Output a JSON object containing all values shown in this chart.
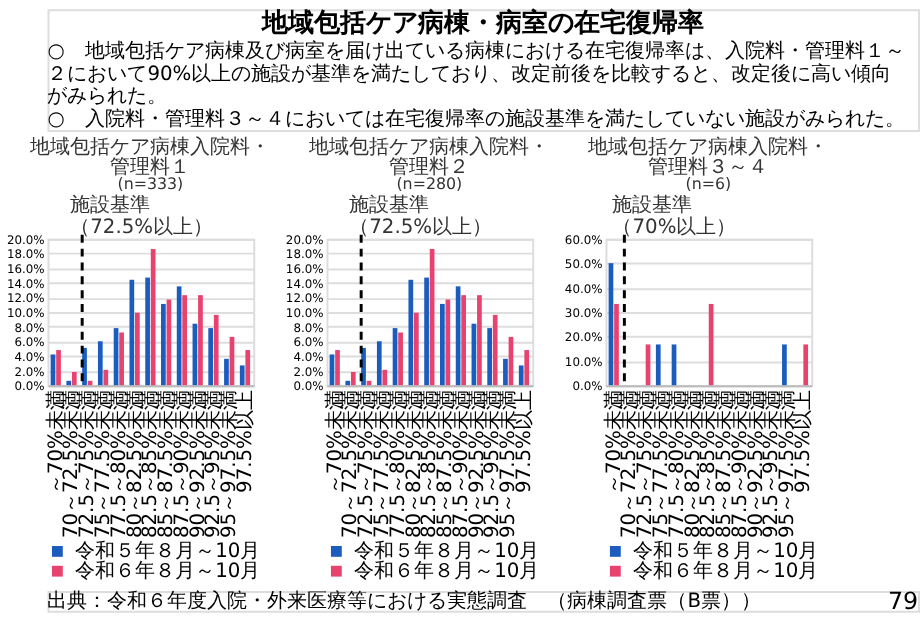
{
  "chart_data": [
    {
      "type": "other",
      "title": "地域包括ケア病棟・病室の在宅復帰率",
      "annotations": [
        "○　地域包括ケア病棟及び病室を届け出ている病棟における在宅復帰率は、入院料・管理料１～２において90%以上の施設が基準を満たしており、改定前後を比較すると、改定後に高い傾向がみられた。",
        "○　入院料・管理料３～４においては在宅復帰率の施設基準を満たしていない施設がみられた。",
        "出典：令和６年度入院・外来医療等における実態調査　（病棟調査票（B票））",
        "79"
      ]
    },
    {
      "type": "bar",
      "title": "地域包括ケア病棟入院料・管理料１",
      "subtitle": "(n=333)",
      "categories": [
        "～70%未満",
        "70～72.5%未満",
        "72.5～75%未満",
        "75～77.5%未満",
        "77.5～80%未満",
        "80～82.5%未満",
        "82.5～85%未満",
        "85～87.5%未満",
        "87.5～90%未満",
        "90～92.5%未満",
        "92.5～95%未満",
        "95～97.5%未満",
        "97.5%以上"
      ],
      "series": [
        {
          "name": "令和５年８月～10月",
          "color": "#1b5cbf",
          "values": [
            4.2,
            0.6,
            5.1,
            6.0,
            7.8,
            14.4,
            14.7,
            11.1,
            13.5,
            8.4,
            7.8,
            3.6,
            2.7
          ]
        },
        {
          "name": "令和６年８月～10月",
          "color": "#e8426f",
          "values": [
            4.8,
            1.8,
            0.6,
            2.1,
            7.2,
            9.9,
            18.6,
            11.7,
            12.3,
            12.3,
            9.6,
            6.6,
            4.8
          ]
        }
      ],
      "ylim": [
        0,
        20
      ],
      "yticks": [
        {
          "value": 0,
          "label": "0.0%"
        },
        {
          "value": 2,
          "label": "2.0%"
        },
        {
          "value": 4,
          "label": "4.0%"
        },
        {
          "value": 6,
          "label": "6.0%"
        },
        {
          "value": 8,
          "label": "8.0%"
        },
        {
          "value": 10,
          "label": "10.0%"
        },
        {
          "value": 12,
          "label": "12.0%"
        },
        {
          "value": 14,
          "label": "14.0%"
        },
        {
          "value": 16,
          "label": "16.0%"
        },
        {
          "value": 18,
          "label": "18.0%"
        },
        {
          "value": 20,
          "label": "20.0%"
        }
      ],
      "grid": "y",
      "legend": "bottom",
      "ref_lines": [
        {
          "axis": "x",
          "value": "72.5～75%未満",
          "label": "施設基準（72.5%以上）",
          "line_style": "dashed"
        }
      ]
    },
    {
      "type": "bar",
      "title": "地域包括ケア病棟入院料・管理料２",
      "subtitle": "(n=280)",
      "categories": [
        "～70%未満",
        "70～72.5%未満",
        "72.5～75%未満",
        "75～77.5%未満",
        "77.5～80%未満",
        "80～82.5%未満",
        "82.5～85%未満",
        "85～87.5%未満",
        "87.5～90%未満",
        "90～92.5%未満",
        "92.5～95%未満",
        "95～97.5%未満",
        "97.5%以上"
      ],
      "series": [
        {
          "name": "令和５年８月～10月",
          "color": "#1b5cbf",
          "values": [
            4.2,
            0.6,
            5.1,
            6.0,
            7.8,
            14.4,
            14.7,
            11.1,
            13.5,
            8.4,
            7.8,
            3.6,
            2.7
          ]
        },
        {
          "name": "令和６年８月～10月",
          "color": "#e8426f",
          "values": [
            4.8,
            1.8,
            0.6,
            2.1,
            7.2,
            9.9,
            18.6,
            11.7,
            12.3,
            12.3,
            9.6,
            6.6,
            4.8
          ]
        }
      ],
      "ylim": [
        0,
        20
      ],
      "yticks": [
        {
          "value": 0,
          "label": "0.0%"
        },
        {
          "value": 2,
          "label": "2.0%"
        },
        {
          "value": 4,
          "label": "4.0%"
        },
        {
          "value": 6,
          "label": "6.0%"
        },
        {
          "value": 8,
          "label": "8.0%"
        },
        {
          "value": 10,
          "label": "10.0%"
        },
        {
          "value": 12,
          "label": "12.0%"
        },
        {
          "value": 14,
          "label": "14.0%"
        },
        {
          "value": 16,
          "label": "16.0%"
        },
        {
          "value": 18,
          "label": "18.0%"
        },
        {
          "value": 20,
          "label": "20.0%"
        }
      ],
      "grid": "y",
      "legend": "bottom",
      "ref_lines": [
        {
          "axis": "x",
          "value": "72.5～75%未満",
          "label": "施設基準（72.5%以上）",
          "line_style": "dashed"
        }
      ]
    },
    {
      "type": "bar",
      "title": "地域包括ケア病棟入院料・管理料３～４",
      "subtitle": "(n=6)",
      "categories": [
        "～70%未満",
        "70～72.5%未満",
        "72.5～75%未満",
        "75～77.5%未満",
        "77.5～80%未満",
        "80～82.5%未満",
        "82.5～85%未満",
        "85～87.5%未満",
        "87.5～90%未満",
        "90～92.5%未満",
        "92.5～95%未満",
        "95～97.5%未満",
        "97.5%以上"
      ],
      "series": [
        {
          "name": "令和５年８月～10月",
          "color": "#1b5cbf",
          "values": [
            50.0,
            0,
            0,
            16.7,
            16.7,
            0,
            0,
            0,
            0,
            0,
            0,
            16.7,
            0
          ]
        },
        {
          "name": "令和６年８月～10月",
          "color": "#e8426f",
          "values": [
            33.3,
            0,
            16.7,
            0,
            0,
            0,
            33.3,
            0,
            0,
            0,
            0,
            0,
            16.7
          ]
        }
      ],
      "ylim": [
        0,
        60
      ],
      "yticks": [
        {
          "value": 0,
          "label": "0.0%"
        },
        {
          "value": 10,
          "label": "10.0%"
        },
        {
          "value": 20,
          "label": "20.0%"
        },
        {
          "value": 30,
          "label": "30.0%"
        },
        {
          "value": 40,
          "label": "40.0%"
        },
        {
          "value": 50,
          "label": "50.0%"
        },
        {
          "value": 60,
          "label": "60.0%"
        }
      ],
      "grid": "y",
      "legend": "bottom",
      "ref_lines": [
        {
          "axis": "x",
          "value": "70～72.5%未満",
          "label": "施設基準（70%以上）",
          "line_style": "dashed"
        }
      ]
    }
  ]
}
